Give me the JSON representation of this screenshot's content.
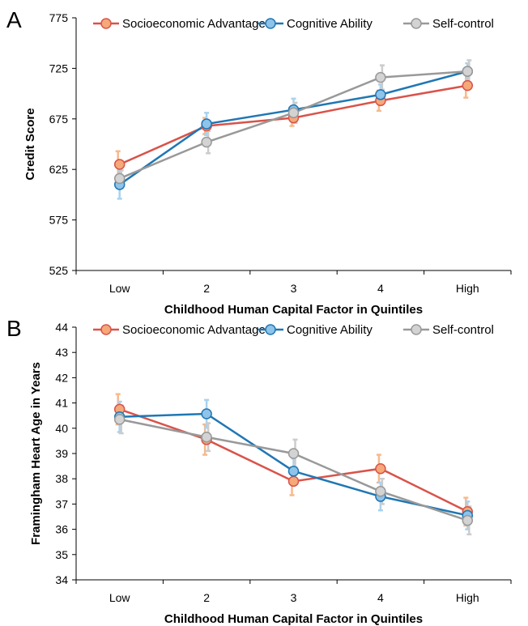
{
  "chart_data": [
    {
      "type": "line",
      "panel_label": "A",
      "xlabel": "Childhood Human Capital Factor in Quintiles",
      "ylabel": "Credit Score",
      "categories": [
        "Low",
        "2",
        "3",
        "4",
        "High"
      ],
      "ylim": [
        525,
        775
      ],
      "yticks": [
        525,
        575,
        625,
        675,
        725,
        775
      ],
      "grid": false,
      "legend_position": "top",
      "series": [
        {
          "name": "Socioeconomic Advantage",
          "line_color": "#d9534a",
          "marker_color": "#f5a878",
          "error_color": "#f7b98c",
          "values": [
            630,
            668,
            676,
            693,
            708
          ],
          "errors": [
            13,
            8,
            8,
            10,
            12
          ]
        },
        {
          "name": "Cognitive Ability",
          "line_color": "#1f77b4",
          "marker_color": "#8ec3ea",
          "error_color": "#a9d2ee",
          "values": [
            610,
            670,
            684,
            699,
            722
          ],
          "errors": [
            14,
            11,
            11,
            10,
            8
          ]
        },
        {
          "name": "Self-control",
          "line_color": "#999999",
          "marker_color": "#d3d3d3",
          "error_color": "#cccccc",
          "values": [
            616,
            652,
            681,
            716,
            722
          ],
          "errors": [
            8,
            11,
            10,
            12,
            11
          ]
        }
      ]
    },
    {
      "type": "line",
      "panel_label": "B",
      "xlabel": "Childhood Human Capital Factor in Quintiles",
      "ylabel": "Framingham Heart Age in Years",
      "categories": [
        "Low",
        "2",
        "3",
        "4",
        "High"
      ],
      "ylim": [
        34,
        44
      ],
      "yticks": [
        34,
        35,
        36,
        37,
        38,
        39,
        40,
        41,
        42,
        43,
        44
      ],
      "grid": false,
      "legend_position": "top",
      "series": [
        {
          "name": "Socioeconomic Advantage",
          "line_color": "#d9534a",
          "marker_color": "#f5a878",
          "error_color": "#f7b98c",
          "values": [
            40.75,
            39.55,
            37.9,
            38.4,
            36.7
          ],
          "errors": [
            0.6,
            0.6,
            0.55,
            0.55,
            0.55
          ]
        },
        {
          "name": "Cognitive Ability",
          "line_color": "#1f77b4",
          "marker_color": "#8ec3ea",
          "error_color": "#a9d2ee",
          "values": [
            40.45,
            40.57,
            38.3,
            37.3,
            36.55
          ],
          "errors": [
            0.6,
            0.55,
            0.5,
            0.55,
            0.55
          ]
        },
        {
          "name": "Self-control",
          "line_color": "#999999",
          "marker_color": "#d3d3d3",
          "error_color": "#cccccc",
          "values": [
            40.35,
            39.65,
            39.0,
            37.5,
            36.35
          ],
          "errors": [
            0.55,
            0.55,
            0.55,
            0.5,
            0.55
          ]
        }
      ]
    }
  ]
}
